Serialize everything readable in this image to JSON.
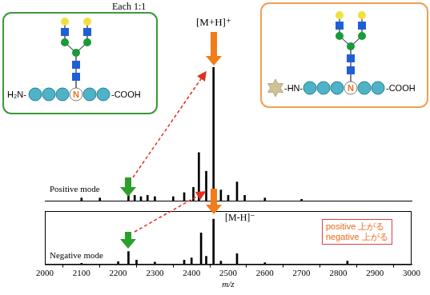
{
  "chart_data": [
    {
      "type": "bar",
      "title": "Positive mode",
      "x": [
        2100,
        2150,
        2228,
        2245,
        2262,
        2280,
        2300,
        2350,
        2380,
        2405,
        2420,
        2440,
        2460,
        2480,
        2500,
        2524,
        2545,
        2600,
        2700
      ],
      "values": [
        2,
        2,
        5,
        4,
        3,
        4,
        3,
        3,
        6,
        10,
        36,
        22,
        100,
        8,
        4,
        14,
        4,
        2,
        1
      ],
      "color": "#000000",
      "xlim": [
        2000,
        3000
      ],
      "ylim": [
        0,
        100
      ],
      "grid": false,
      "tick_labels": false,
      "annotations": [
        "[M+H]⁺"
      ]
    },
    {
      "type": "bar",
      "title": "Negative mode",
      "x": [
        2100,
        2200,
        2228,
        2250,
        2300,
        2380,
        2400,
        2426,
        2440,
        2460,
        2480,
        2524,
        2600,
        2825
      ],
      "values": [
        2,
        5,
        24,
        8,
        4,
        8,
        12,
        59,
        15,
        85,
        6,
        20,
        3,
        6
      ],
      "color": "#000000",
      "xlim": [
        2000,
        3000
      ],
      "xticks": [
        2000,
        2100,
        2200,
        2300,
        2400,
        2500,
        2600,
        2700,
        2800,
        2900,
        3000
      ],
      "ylim": [
        0,
        100
      ],
      "xlabel": "m/z",
      "grid": false,
      "tick_labels": "x",
      "annotations": [
        "[M-H]⁻",
        "positive 上がる",
        "negative 上がる"
      ]
    }
  ],
  "header": "Each 1:1",
  "structures": [
    {
      "left": "H₂N-",
      "center": "N",
      "right": "-COOH"
    },
    {
      "left": "-HN-",
      "center": "N",
      "right": "-COOH"
    }
  ]
}
